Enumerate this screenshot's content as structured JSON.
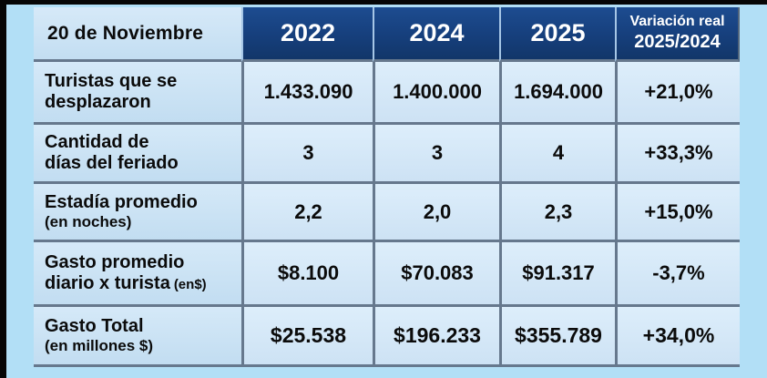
{
  "table": {
    "corner_label": "20 de Noviembre",
    "columns": [
      "2022",
      "2024",
      "2025"
    ],
    "variation_header": {
      "line1": "Variación real",
      "line2": "2025/2024"
    },
    "rows": [
      {
        "label_line1": "Turistas que se",
        "label_line2": "desplazaron",
        "label_suffix": "",
        "values": [
          "1.433.090",
          "1.400.000",
          "1.694.000"
        ],
        "variation": "+21,0%"
      },
      {
        "label_line1": "Cantidad de",
        "label_line2": "días del feriado",
        "label_suffix": "",
        "values": [
          "3",
          "3",
          "4"
        ],
        "variation": "+33,3%"
      },
      {
        "label_line1": "Estadía promedio",
        "label_line2": "(en noches)",
        "label_suffix": "",
        "values": [
          "2,2",
          "2,0",
          "2,3"
        ],
        "variation": "+15,0%"
      },
      {
        "label_line1": "Gasto promedio",
        "label_line2": "diario x turista",
        "label_suffix": "(en$)",
        "values": [
          "$8.100",
          "$70.083",
          "$91.317"
        ],
        "variation": "-3,7%"
      },
      {
        "label_line1": "Gasto Total",
        "label_line2": "(en millones $)",
        "label_suffix": "",
        "values": [
          "$25.538",
          "$196.233",
          "$355.789"
        ],
        "variation": "+34,0%"
      }
    ]
  },
  "chart_data": {
    "type": "table",
    "title": "20 de Noviembre",
    "columns": [
      "2022",
      "2024",
      "2025",
      "Variación real 2025/2024"
    ],
    "rows": [
      {
        "label": "Turistas que se desplazaron",
        "values": [
          "1.433.090",
          "1.400.000",
          "1.694.000",
          "+21,0%"
        ]
      },
      {
        "label": "Cantidad de días del feriado",
        "values": [
          "3",
          "3",
          "4",
          "+33,3%"
        ]
      },
      {
        "label": "Estadía promedio (en noches)",
        "values": [
          "2,2",
          "2,0",
          "2,3",
          "+15,0%"
        ]
      },
      {
        "label": "Gasto promedio diario x turista (en$)",
        "values": [
          "$8.100",
          "$70.083",
          "$91.317",
          "-3,7%"
        ]
      },
      {
        "label": "Gasto Total (en millones $)",
        "values": [
          "$25.538",
          "$196.233",
          "$355.789",
          "+34,0%"
        ]
      }
    ]
  },
  "colors": {
    "header_navy": "#163f7c",
    "header_text": "#ffffff",
    "page_blue": "#b2dff6",
    "label_cell_blue": "#cbe4f5",
    "value_cell_blue": "#d7e9f9",
    "separator_gray": "#66788d",
    "text_black": "#0b0b0b",
    "frame_black": "#060606"
  }
}
